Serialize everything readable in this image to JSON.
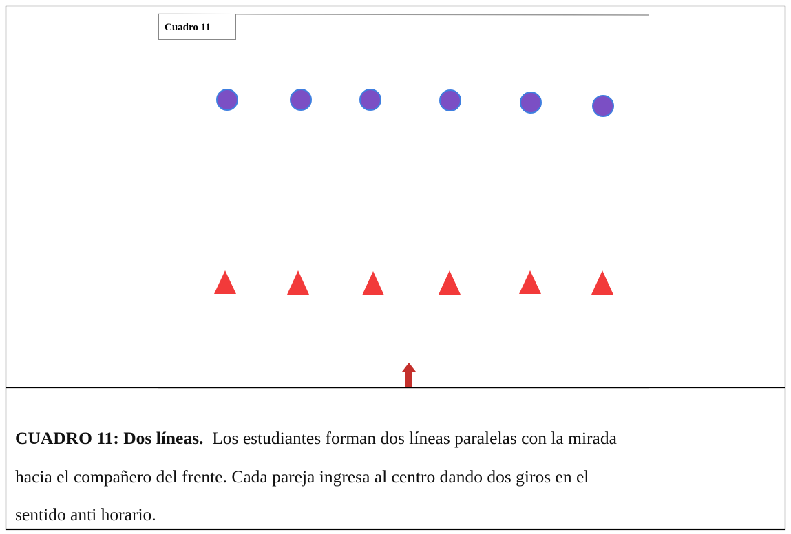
{
  "figure": {
    "label": "Cuadro 11"
  },
  "caption": {
    "heading": "CUADRO 11: Dos líneas.",
    "lines": [
      "Los estudiantes forman dos líneas paralelas con la mirada",
      "hacia el compañero del frente. Cada pareja ingresa al centro dando dos giros en el",
      "sentido anti horario."
    ]
  }
}
